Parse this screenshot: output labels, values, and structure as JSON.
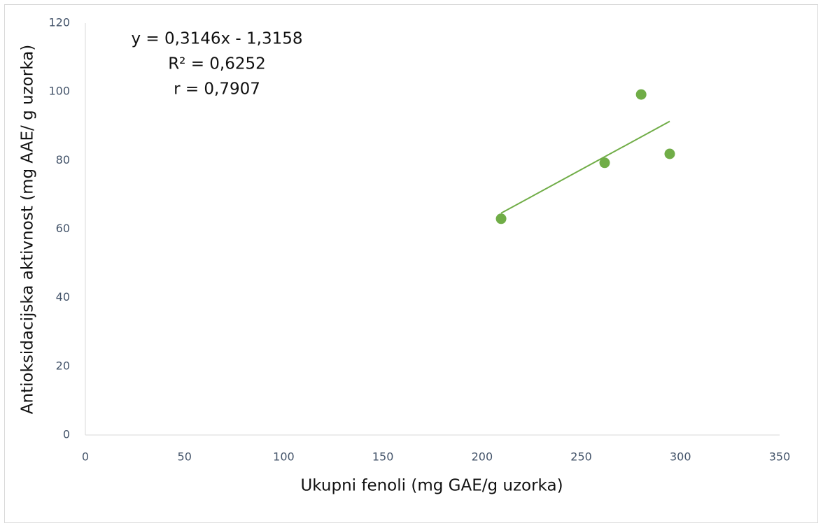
{
  "chart_data": {
    "type": "scatter",
    "xlabel": "Ukupni fenoli (mg GAE/g uzorka)",
    "ylabel": "Antioksidacijska aktivnost (mg AAE/ g uzorka)",
    "annotations": [
      "y = 0,3146x - 1,3158",
      "R² = 0,6252",
      "r = 0,7907"
    ],
    "series": [
      {
        "name": "Antioksidacijska aktivnost",
        "color": "#70ad47",
        "x": [
          209.6,
          261.8,
          280.2,
          294.6
        ],
        "values": [
          63.0,
          79.3,
          99.2,
          81.9
        ]
      }
    ],
    "trendline": {
      "slope": 0.3146,
      "intercept": -1.3158,
      "color": "#70ad47"
    },
    "xlim": [
      0,
      350
    ],
    "xticks": [
      0,
      50,
      100,
      150,
      200,
      250,
      300,
      350
    ],
    "ylim": [
      0,
      120
    ],
    "yticks": [
      0,
      20,
      40,
      60,
      80,
      100,
      120
    ],
    "grid": false
  }
}
